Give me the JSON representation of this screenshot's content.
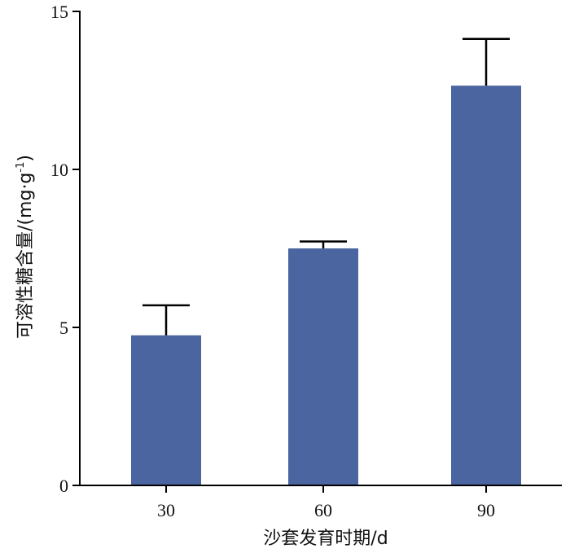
{
  "chart_data": {
    "type": "bar",
    "title": "",
    "xlabel": "沙套发育时期/d",
    "ylabel": "可溶性糖含量/(mg·g⁻¹)",
    "ylabel_main": "可溶性糖含量/(mg·g",
    "ylabel_exp": "-1",
    "ylabel_close": ")",
    "categories": [
      "30",
      "60",
      "90"
    ],
    "values": [
      4.75,
      7.5,
      12.65
    ],
    "errors": [
      0.95,
      0.22,
      1.48
    ],
    "ylim": [
      0,
      15
    ],
    "yticks": [
      "0",
      "5",
      "10",
      "15"
    ],
    "bar_color": "#4a65a0",
    "grid": false,
    "legend": "none"
  }
}
